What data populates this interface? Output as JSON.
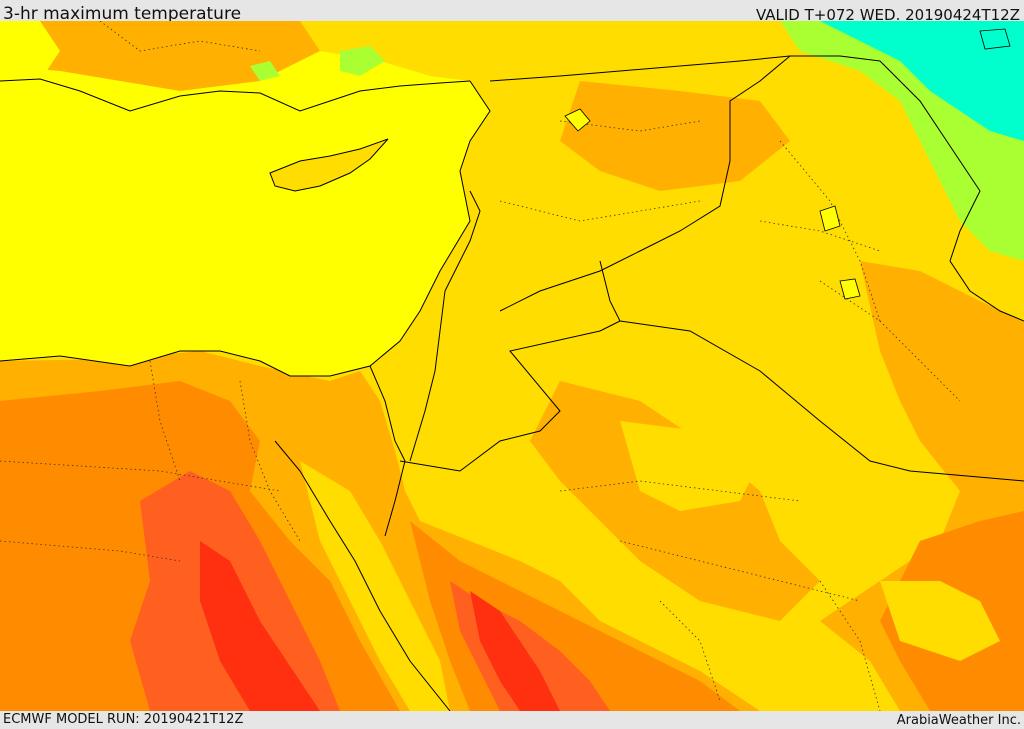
{
  "header": {
    "title": "3-hr maximum temperature",
    "valid": "VALID T+072 WED. 20190424T12Z"
  },
  "footer": {
    "model_run": "ECMWF MODEL RUN: 20190421T12Z",
    "credit": "ArabiaWeather Inc."
  },
  "palette": {
    "sea_yellow": "#ffff00",
    "light_orange": "#ffdd00",
    "orange": "#ffb000",
    "dark_orange": "#ff8c00",
    "red_orange": "#ff6020",
    "red": "#ff3010",
    "green": "#aaff33",
    "cyan": "#00ffcc"
  },
  "map": {
    "field": "temperature-field",
    "borders": "country-borders"
  }
}
